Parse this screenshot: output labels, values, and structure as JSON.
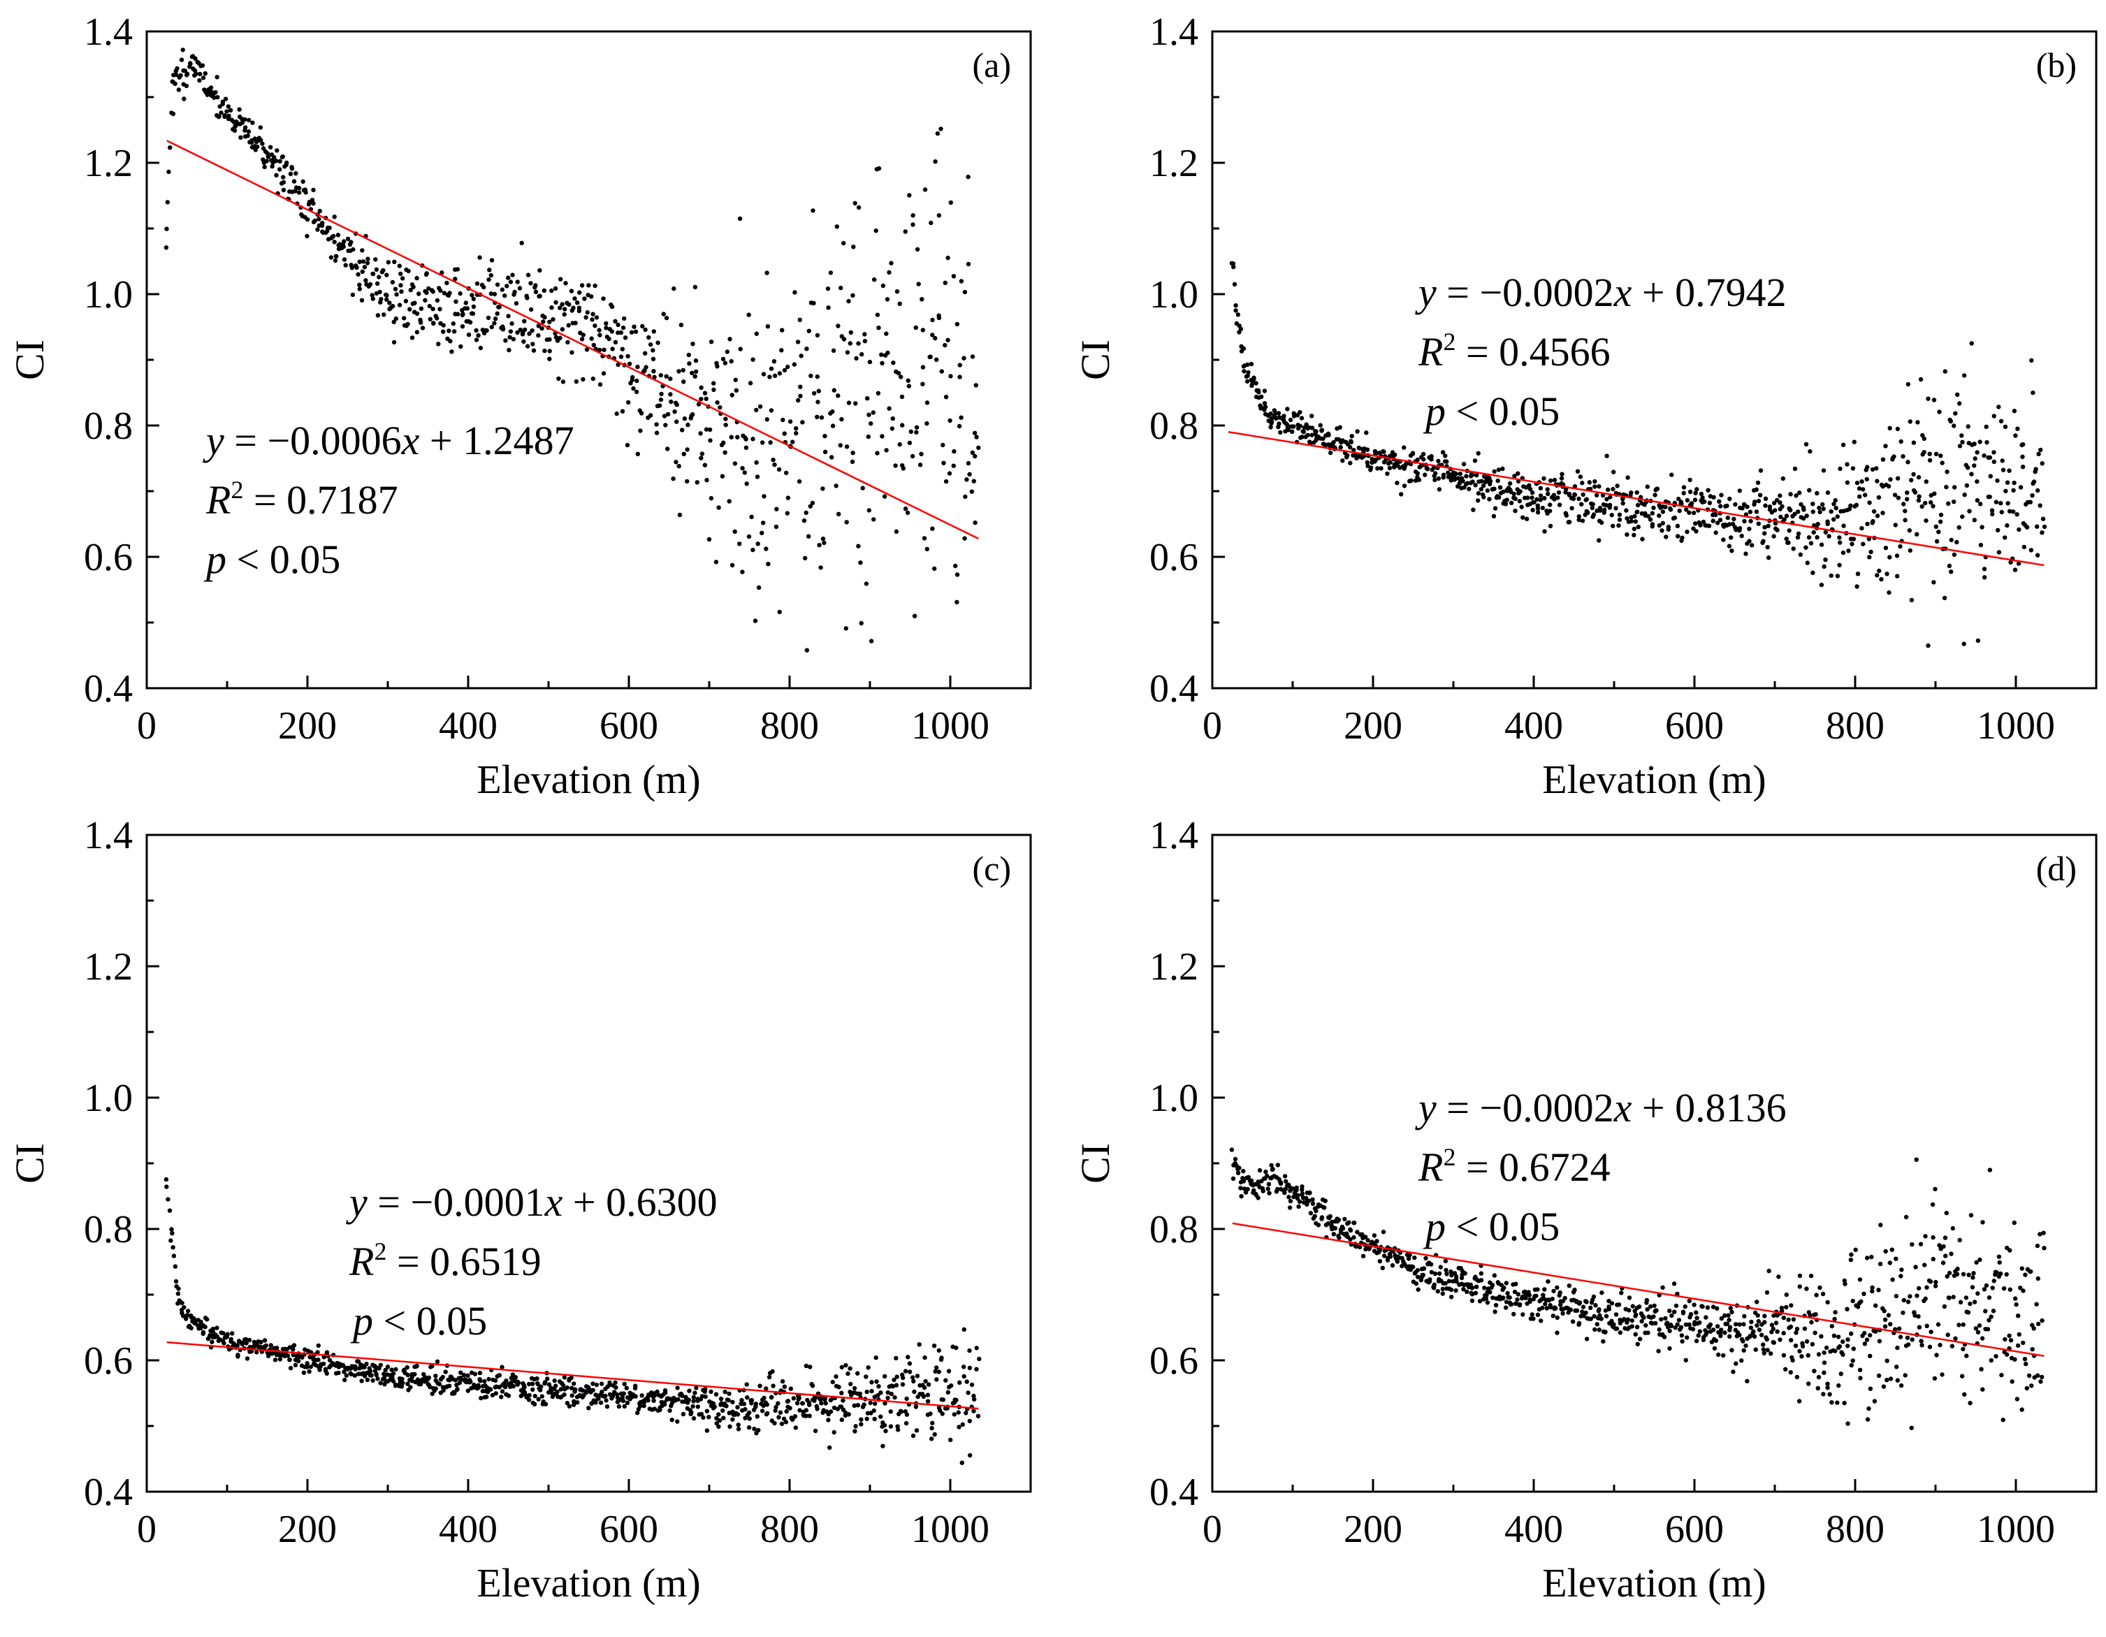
{
  "chart_data": [
    {
      "type": "scatter",
      "panel": "(a)",
      "xlabel": "Elevation (m)",
      "ylabel": "CI",
      "xlim": [
        0,
        1100
      ],
      "ylim": [
        0.4,
        1.4
      ],
      "xticks": [
        "0",
        "200",
        "400",
        "600",
        "800",
        "1000"
      ],
      "yticks": [
        "0.4",
        "0.6",
        "0.8",
        "1.0",
        "1.2",
        "1.4"
      ],
      "fit": {
        "slope": -0.0006,
        "intercept": 1.2487,
        "x_range": [
          25,
          1035
        ]
      },
      "equation": {
        "y": "y",
        "eq": " = −0.0006",
        "x": "x",
        "rest": " + 1.2487"
      },
      "r2": {
        "R": "R",
        "sup": "2",
        "rest": " = 0.7187"
      },
      "p": {
        "p": "p",
        "rest": " < 0.05"
      },
      "points_description_range": {
        "x": [
          25,
          1035
        ],
        "y": [
          0.45,
          1.36
        ]
      },
      "series": [
        {
          "shape": [
            [
              25,
              1.09
            ],
            [
              30,
              1.3
            ],
            [
              40,
              1.33
            ],
            [
              55,
              1.355
            ],
            [
              70,
              1.33
            ],
            [
              90,
              1.29
            ],
            [
              120,
              1.25
            ],
            [
              160,
              1.2
            ],
            [
              190,
              1.15
            ],
            [
              220,
              1.1
            ],
            [
              260,
              1.05
            ],
            [
              300,
              1.0
            ],
            [
              350,
              0.98
            ],
            [
              400,
              0.98
            ],
            [
              450,
              0.97
            ],
            [
              500,
              0.97
            ],
            [
              550,
              0.96
            ],
            [
              600,
              0.9
            ],
            [
              650,
              0.85
            ],
            [
              700,
              0.8
            ],
            [
              750,
              0.77
            ],
            [
              800,
              0.78
            ],
            [
              850,
              0.8
            ],
            [
              900,
              0.85
            ],
            [
              950,
              0.88
            ],
            [
              1000,
              0.9
            ],
            [
              1035,
              0.79
            ]
          ],
          "spread": [
            [
              25,
              0.02
            ],
            [
              100,
              0.01
            ],
            [
              200,
              0.02
            ],
            [
              300,
              0.03
            ],
            [
              400,
              0.035
            ],
            [
              500,
              0.04
            ],
            [
              600,
              0.06
            ],
            [
              700,
              0.09
            ],
            [
              800,
              0.14
            ],
            [
              900,
              0.17
            ],
            [
              1000,
              0.15
            ]
          ],
          "count": 950,
          "seed": 11
        }
      ]
    },
    {
      "type": "scatter",
      "panel": "(b)",
      "xlabel": "Elevation (m)",
      "ylabel": "CI",
      "xlim": [
        0,
        1100
      ],
      "ylim": [
        0.4,
        1.4
      ],
      "xticks": [
        "0",
        "200",
        "400",
        "600",
        "800",
        "1000"
      ],
      "yticks": [
        "0.4",
        "0.6",
        "0.8",
        "1.0",
        "1.2",
        "1.4"
      ],
      "fit": {
        "slope": -0.0002,
        "intercept": 0.7942,
        "x_range": [
          20,
          1035
        ]
      },
      "equation": {
        "y": "y",
        "eq": " = −0.0002",
        "x": "x",
        "rest": " + 0.7942"
      },
      "r2": {
        "R": "R",
        "sup": "2",
        "rest": " = 0.4566"
      },
      "p": {
        "p": "p",
        "rest": " < 0.05"
      },
      "series": [
        {
          "shape": [
            [
              25,
              1.06
            ],
            [
              30,
              0.98
            ],
            [
              40,
              0.9
            ],
            [
              55,
              0.85
            ],
            [
              70,
              0.82
            ],
            [
              100,
              0.8
            ],
            [
              150,
              0.775
            ],
            [
              200,
              0.755
            ],
            [
              300,
              0.72
            ],
            [
              400,
              0.695
            ],
            [
              500,
              0.68
            ],
            [
              600,
              0.665
            ],
            [
              700,
              0.655
            ],
            [
              750,
              0.655
            ],
            [
              800,
              0.67
            ],
            [
              850,
              0.69
            ],
            [
              900,
              0.7
            ],
            [
              950,
              0.71
            ],
            [
              1000,
              0.7
            ],
            [
              1035,
              0.65
            ]
          ],
          "spread": [
            [
              25,
              0.01
            ],
            [
              100,
              0.01
            ],
            [
              200,
              0.012
            ],
            [
              400,
              0.018
            ],
            [
              600,
              0.025
            ],
            [
              700,
              0.035
            ],
            [
              800,
              0.06
            ],
            [
              900,
              0.08
            ],
            [
              1000,
              0.07
            ]
          ],
          "count": 1000,
          "seed": 23
        }
      ]
    },
    {
      "type": "scatter",
      "panel": "(c)",
      "xlabel": "Elevation (m)",
      "ylabel": "CI",
      "xlim": [
        0,
        1100
      ],
      "ylim": [
        0.4,
        1.4
      ],
      "xticks": [
        "0",
        "200",
        "400",
        "600",
        "800",
        "1000"
      ],
      "yticks": [
        "0.4",
        "0.6",
        "0.8",
        "1.0",
        "1.2",
        "1.4"
      ],
      "fit": {
        "slope": -0.0001,
        "intercept": 0.63,
        "x_range": [
          25,
          1035
        ]
      },
      "equation": {
        "y": "y",
        "eq": " = −0.0001",
        "x": "x",
        "rest": " + 0.6300"
      },
      "r2": {
        "R": "R",
        "sup": "2",
        "rest": " = 0.6519"
      },
      "p": {
        "p": "p",
        "rest": " < 0.05"
      },
      "series": [
        {
          "shape": [
            [
              25,
              0.87
            ],
            [
              30,
              0.8
            ],
            [
              38,
              0.7
            ],
            [
              50,
              0.66
            ],
            [
              70,
              0.645
            ],
            [
              100,
              0.63
            ],
            [
              150,
              0.615
            ],
            [
              200,
              0.6
            ],
            [
              300,
              0.575
            ],
            [
              400,
              0.565
            ],
            [
              500,
              0.555
            ],
            [
              600,
              0.545
            ],
            [
              700,
              0.53
            ],
            [
              800,
              0.53
            ],
            [
              900,
              0.54
            ],
            [
              1000,
              0.545
            ],
            [
              1035,
              0.55
            ]
          ],
          "spread": [
            [
              25,
              0.01
            ],
            [
              100,
              0.008
            ],
            [
              300,
              0.009
            ],
            [
              600,
              0.012
            ],
            [
              750,
              0.016
            ],
            [
              850,
              0.03
            ],
            [
              1000,
              0.035
            ]
          ],
          "count": 1000,
          "seed": 37
        }
      ]
    },
    {
      "type": "scatter",
      "panel": "(d)",
      "xlabel": "Elevation (m)",
      "ylabel": "CI",
      "xlim": [
        0,
        1100
      ],
      "ylim": [
        0.4,
        1.4
      ],
      "xticks": [
        "0",
        "200",
        "400",
        "600",
        "800",
        "1000"
      ],
      "yticks": [
        "0.4",
        "0.6",
        "0.8",
        "1.0",
        "1.2",
        "1.4"
      ],
      "fit": {
        "slope": -0.0002,
        "intercept": 0.8136,
        "x_range": [
          25,
          1035
        ]
      },
      "equation": {
        "y": "y",
        "eq": " = −0.0002",
        "x": "x",
        "rest": " + 0.8136"
      },
      "r2": {
        "R": "R",
        "sup": "2",
        "rest": " = 0.6724"
      },
      "p": {
        "p": "p",
        "rest": " < 0.05"
      },
      "series": [
        {
          "shape": [
            [
              25,
              0.9
            ],
            [
              40,
              0.87
            ],
            [
              60,
              0.865
            ],
            [
              75,
              0.89
            ],
            [
              90,
              0.86
            ],
            [
              120,
              0.84
            ],
            [
              160,
              0.8
            ],
            [
              200,
              0.77
            ],
            [
              250,
              0.74
            ],
            [
              300,
              0.72
            ],
            [
              400,
              0.69
            ],
            [
              500,
              0.67
            ],
            [
              600,
              0.655
            ],
            [
              700,
              0.64
            ],
            [
              750,
              0.635
            ],
            [
              800,
              0.645
            ],
            [
              850,
              0.66
            ],
            [
              900,
              0.68
            ],
            [
              950,
              0.69
            ],
            [
              1000,
              0.66
            ],
            [
              1035,
              0.66
            ]
          ],
          "spread": [
            [
              25,
              0.012
            ],
            [
              100,
              0.01
            ],
            [
              200,
              0.012
            ],
            [
              400,
              0.015
            ],
            [
              600,
              0.022
            ],
            [
              700,
              0.035
            ],
            [
              800,
              0.06
            ],
            [
              900,
              0.08
            ],
            [
              1000,
              0.07
            ]
          ],
          "count": 1000,
          "seed": 53
        }
      ]
    }
  ]
}
